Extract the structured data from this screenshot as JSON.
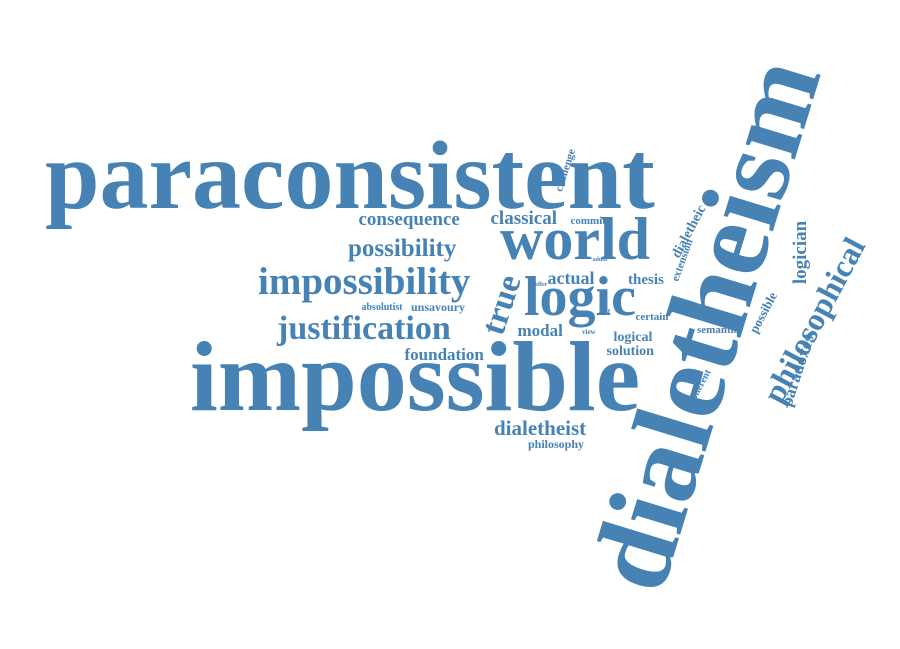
{
  "cloud": {
    "accent_color": "#4682b4",
    "words": [
      "paraconsistent",
      "dialetheism",
      "impossible",
      "world",
      "logic",
      "impossibility",
      "justification",
      "philosophical",
      "possibility",
      "consequence",
      "classical",
      "dialetheist",
      "foundation",
      "true",
      "logician",
      "paradoxes",
      "actual",
      "thesis",
      "modal",
      "logical",
      "solution",
      "unsavoury",
      "absolutist",
      "challenge",
      "commit",
      "dialetheic",
      "extension",
      "certain",
      "semantic",
      "possible",
      "coherent",
      "philosophy",
      "view",
      "self",
      "offer",
      "admit"
    ]
  }
}
